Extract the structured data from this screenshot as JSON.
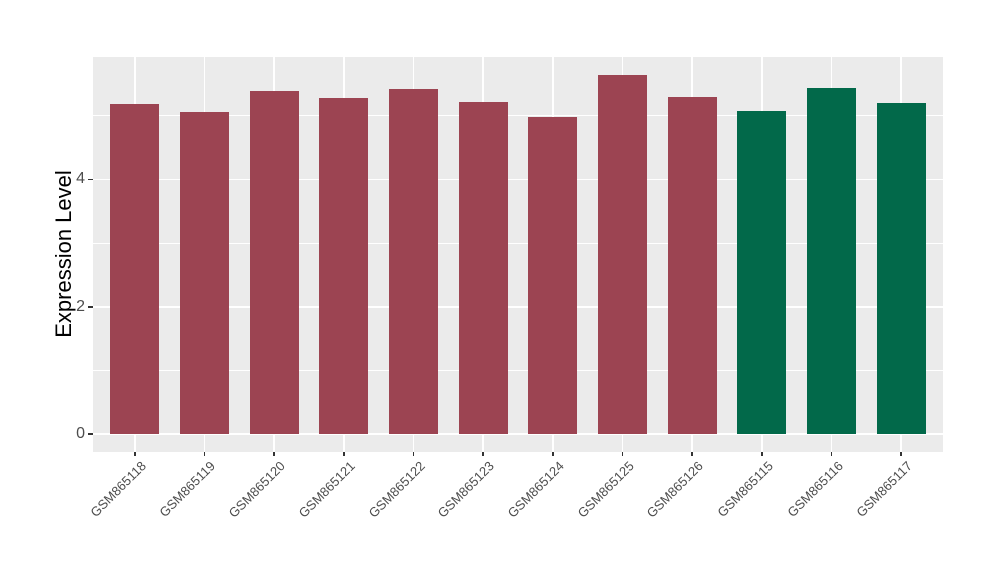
{
  "chart_data": {
    "type": "bar",
    "title": "",
    "xlabel": "",
    "ylabel": "Expression Level",
    "categories": [
      "GSM865118",
      "GSM865119",
      "GSM865120",
      "GSM865121",
      "GSM865122",
      "GSM865123",
      "GSM865124",
      "GSM865125",
      "GSM865126",
      "GSM865115",
      "GSM865116",
      "GSM865117"
    ],
    "values": [
      5.19,
      5.06,
      5.38,
      5.28,
      5.41,
      5.22,
      4.98,
      5.64,
      5.3,
      5.07,
      5.44,
      5.2
    ],
    "bar_colors": [
      "#9C4452",
      "#9C4452",
      "#9C4452",
      "#9C4452",
      "#9C4452",
      "#9C4452",
      "#9C4452",
      "#9C4452",
      "#9C4452",
      "#02694A",
      "#02694A",
      "#02694A"
    ],
    "ylim": [
      -0.28,
      5.92
    ],
    "yticks": [
      0,
      2,
      4
    ],
    "yticks_minor": [
      1,
      3,
      5
    ],
    "x_tick_rotation": 45,
    "bar_relative_width": 0.7,
    "grid": true,
    "legend": "none",
    "panel_background": "#EBEBEB",
    "grid_color": "#FFFFFF",
    "tick_color": "#333333",
    "tick_label_color": "#4D4D4D",
    "axis_title_color": "#000000"
  }
}
